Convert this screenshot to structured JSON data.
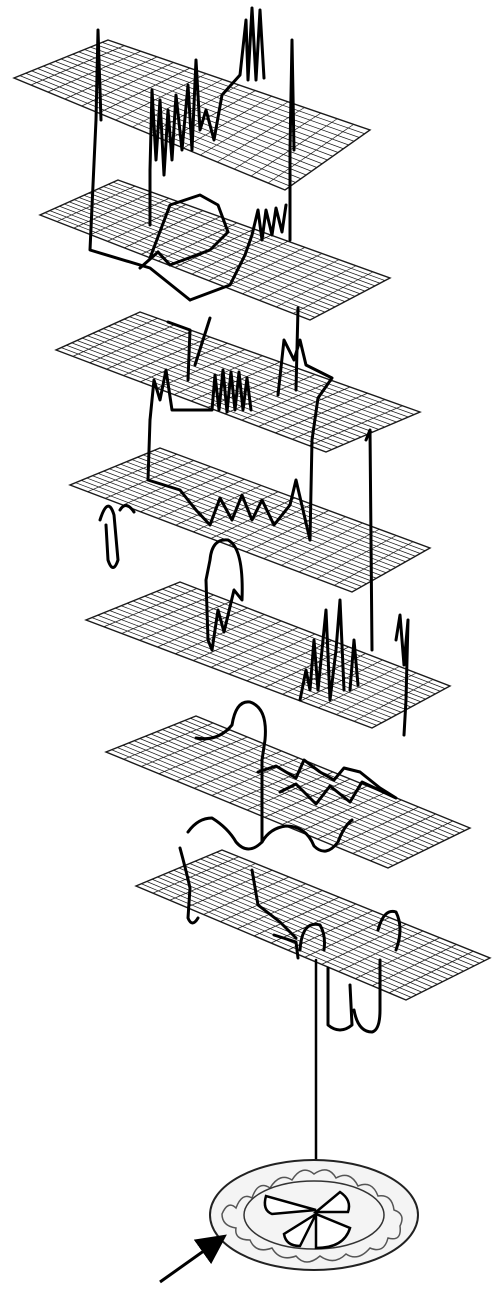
{
  "diagram": {
    "layer_count": 7,
    "grid_color": "#1a1a1a",
    "plane_fill": "#ffffff",
    "path_color": "#000000",
    "base_ring_color": "#444444",
    "arrow_color": "#000000"
  }
}
